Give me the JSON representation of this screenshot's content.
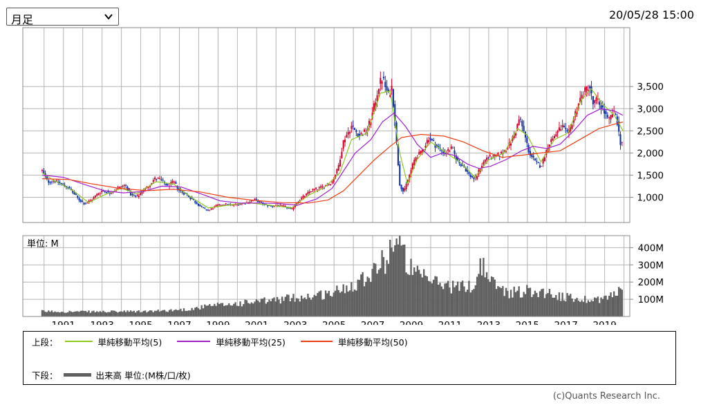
{
  "period_select": {
    "value": "月足"
  },
  "timestamp": "20/05/28 15:00",
  "colors": {
    "up": "#d8002a",
    "down": "#0d2fa8",
    "ma5": "#8cc81e",
    "ma25": "#a01ed2",
    "ma50": "#ee3c10",
    "volume": "#606060"
  },
  "chart_data": [
    {
      "type": "candlestick",
      "interval": "monthly",
      "y_ticks": [
        "1,000",
        "1,500",
        "2,000",
        "2,500",
        "3,000",
        "3,500"
      ],
      "x_ticks": [
        "1991",
        "1993",
        "1995",
        "1997",
        "1999",
        "2001",
        "2003",
        "2005",
        "2007",
        "2009",
        "2011",
        "2013",
        "2015",
        "2017",
        "2019"
      ],
      "ylim": [
        430,
        4830
      ],
      "xlim": [
        1989.4,
        2020.8
      ],
      "grid": true,
      "price_path": [
        [
          1990.4,
          1600
        ],
        [
          1990.7,
          1350
        ],
        [
          1991.0,
          1380
        ],
        [
          1991.4,
          1300
        ],
        [
          1991.8,
          1200
        ],
        [
          1992.3,
          950
        ],
        [
          1992.6,
          850
        ],
        [
          1992.9,
          920
        ],
        [
          1993.2,
          1050
        ],
        [
          1993.5,
          1150
        ],
        [
          1993.9,
          1100
        ],
        [
          1994.3,
          1200
        ],
        [
          1994.7,
          1280
        ],
        [
          1995.0,
          1050
        ],
        [
          1995.3,
          1000
        ],
        [
          1995.6,
          1150
        ],
        [
          1995.9,
          1250
        ],
        [
          1996.2,
          1420
        ],
        [
          1996.5,
          1400
        ],
        [
          1996.9,
          1250
        ],
        [
          1997.2,
          1350
        ],
        [
          1997.5,
          1150
        ],
        [
          1997.9,
          1050
        ],
        [
          1998.3,
          900
        ],
        [
          1998.7,
          750
        ],
        [
          1999.0,
          700
        ],
        [
          1999.4,
          800
        ],
        [
          1999.8,
          850
        ],
        [
          2000.2,
          820
        ],
        [
          2000.6,
          850
        ],
        [
          2001.0,
          880
        ],
        [
          2001.4,
          950
        ],
        [
          2001.8,
          850
        ],
        [
          2002.2,
          800
        ],
        [
          2002.6,
          820
        ],
        [
          2003.0,
          780
        ],
        [
          2003.3,
          720
        ],
        [
          2003.6,
          900
        ],
        [
          2003.9,
          1000
        ],
        [
          2004.3,
          1150
        ],
        [
          2004.7,
          1200
        ],
        [
          2005.0,
          1250
        ],
        [
          2005.4,
          1350
        ],
        [
          2005.7,
          1650
        ],
        [
          2006.0,
          2300
        ],
        [
          2006.4,
          2600
        ],
        [
          2006.8,
          2400
        ],
        [
          2007.2,
          2500
        ],
        [
          2007.5,
          2900
        ],
        [
          2007.8,
          3500
        ],
        [
          2008.0,
          3700
        ],
        [
          2008.3,
          3300
        ],
        [
          2008.5,
          3500
        ],
        [
          2008.7,
          2400
        ],
        [
          2008.9,
          1300
        ],
        [
          2009.1,
          1100
        ],
        [
          2009.4,
          1500
        ],
        [
          2009.7,
          1900
        ],
        [
          2010.0,
          2000
        ],
        [
          2010.4,
          2350
        ],
        [
          2010.8,
          2150
        ],
        [
          2011.2,
          2000
        ],
        [
          2011.6,
          2100
        ],
        [
          2011.9,
          1800
        ],
        [
          2012.2,
          1700
        ],
        [
          2012.5,
          1500
        ],
        [
          2012.8,
          1400
        ],
        [
          2013.1,
          1700
        ],
        [
          2013.4,
          1900
        ],
        [
          2013.8,
          1900
        ],
        [
          2014.2,
          2000
        ],
        [
          2014.6,
          2200
        ],
        [
          2014.9,
          2500
        ],
        [
          2015.1,
          2800
        ],
        [
          2015.3,
          2500
        ],
        [
          2015.6,
          2000
        ],
        [
          2015.9,
          1800
        ],
        [
          2016.2,
          1700
        ],
        [
          2016.6,
          2200
        ],
        [
          2017.0,
          2450
        ],
        [
          2017.3,
          2600
        ],
        [
          2017.6,
          2400
        ],
        [
          2017.9,
          2800
        ],
        [
          2018.2,
          3200
        ],
        [
          2018.5,
          3400
        ],
        [
          2018.7,
          3550
        ],
        [
          2018.9,
          3100
        ],
        [
          2019.1,
          3200
        ],
        [
          2019.4,
          3000
        ],
        [
          2019.7,
          2700
        ],
        [
          2019.9,
          2900
        ],
        [
          2020.1,
          2850
        ],
        [
          2020.25,
          2400
        ],
        [
          2020.35,
          2150
        ],
        [
          2020.45,
          2350
        ]
      ],
      "moving_averages": [
        {
          "name": "単純移動平均(5)",
          "color_key": "ma5",
          "path": [
            [
              1990.4,
              1550
            ],
            [
              1991.0,
              1380
            ],
            [
              1992.0,
              1150
            ],
            [
              1992.8,
              880
            ],
            [
              1993.6,
              1050
            ],
            [
              1994.5,
              1200
            ],
            [
              1995.3,
              1080
            ],
            [
              1996.3,
              1350
            ],
            [
              1997.2,
              1300
            ],
            [
              1998.1,
              1000
            ],
            [
              1999.0,
              760
            ],
            [
              2000.0,
              820
            ],
            [
              2001.0,
              880
            ],
            [
              2002.2,
              820
            ],
            [
              2003.3,
              760
            ],
            [
              2004.2,
              1050
            ],
            [
              2005.0,
              1220
            ],
            [
              2005.8,
              1550
            ],
            [
              2006.4,
              2300
            ],
            [
              2007.2,
              2450
            ],
            [
              2007.9,
              3350
            ],
            [
              2008.4,
              3400
            ],
            [
              2008.9,
              2000
            ],
            [
              2009.3,
              1300
            ],
            [
              2009.8,
              1850
            ],
            [
              2010.5,
              2250
            ],
            [
              2011.3,
              2000
            ],
            [
              2012.0,
              1800
            ],
            [
              2012.8,
              1450
            ],
            [
              2013.5,
              1850
            ],
            [
              2014.3,
              2000
            ],
            [
              2015.0,
              2550
            ],
            [
              2015.5,
              2400
            ],
            [
              2016.2,
              1800
            ],
            [
              2016.9,
              2300
            ],
            [
              2017.6,
              2450
            ],
            [
              2018.3,
              3200
            ],
            [
              2018.8,
              3450
            ],
            [
              2019.4,
              3100
            ],
            [
              2020.0,
              2850
            ],
            [
              2020.45,
              2500
            ]
          ]
        },
        {
          "name": "単純移動平均(25)",
          "color_key": "ma25",
          "path": [
            [
              1990.4,
              1500
            ],
            [
              1991.5,
              1450
            ],
            [
              1992.5,
              1300
            ],
            [
              1993.6,
              1150
            ],
            [
              1994.6,
              1100
            ],
            [
              1995.6,
              1130
            ],
            [
              1996.6,
              1250
            ],
            [
              1997.6,
              1230
            ],
            [
              1998.6,
              1080
            ],
            [
              1999.6,
              920
            ],
            [
              2000.6,
              870
            ],
            [
              2001.6,
              870
            ],
            [
              2002.6,
              860
            ],
            [
              2003.6,
              820
            ],
            [
              2004.6,
              960
            ],
            [
              2005.4,
              1200
            ],
            [
              2006.0,
              1600
            ],
            [
              2006.6,
              2000
            ],
            [
              2007.4,
              2300
            ],
            [
              2008.0,
              2700
            ],
            [
              2008.6,
              2900
            ],
            [
              2009.2,
              2600
            ],
            [
              2009.8,
              2200
            ],
            [
              2010.5,
              1900
            ],
            [
              2011.1,
              2000
            ],
            [
              2011.7,
              1950
            ],
            [
              2012.4,
              1750
            ],
            [
              2013.0,
              1650
            ],
            [
              2013.6,
              1700
            ],
            [
              2014.4,
              1850
            ],
            [
              2015.2,
              2050
            ],
            [
              2015.8,
              2150
            ],
            [
              2016.5,
              2100
            ],
            [
              2017.2,
              2200
            ],
            [
              2017.9,
              2500
            ],
            [
              2018.6,
              2850
            ],
            [
              2019.3,
              3000
            ],
            [
              2020.0,
              2950
            ],
            [
              2020.45,
              2850
            ]
          ]
        },
        {
          "name": "単純移動平均(50)",
          "color_key": "ma50",
          "path": [
            [
              1990.4,
              1420
            ],
            [
              1991.8,
              1400
            ],
            [
              1993.0,
              1300
            ],
            [
              1994.4,
              1200
            ],
            [
              1995.8,
              1150
            ],
            [
              1997.2,
              1180
            ],
            [
              1998.6,
              1120
            ],
            [
              2000.0,
              1000
            ],
            [
              2001.4,
              930
            ],
            [
              2002.8,
              880
            ],
            [
              2004.2,
              870
            ],
            [
              2005.2,
              940
            ],
            [
              2006.0,
              1150
            ],
            [
              2006.8,
              1500
            ],
            [
              2007.6,
              1850
            ],
            [
              2008.4,
              2150
            ],
            [
              2009.0,
              2350
            ],
            [
              2010.0,
              2420
            ],
            [
              2011.2,
              2380
            ],
            [
              2012.2,
              2250
            ],
            [
              2013.2,
              2050
            ],
            [
              2014.2,
              1900
            ],
            [
              2015.2,
              1950
            ],
            [
              2016.2,
              2000
            ],
            [
              2017.2,
              2050
            ],
            [
              2018.2,
              2300
            ],
            [
              2019.2,
              2550
            ],
            [
              2020.0,
              2650
            ],
            [
              2020.45,
              2700
            ]
          ]
        }
      ]
    },
    {
      "type": "bar",
      "title": "単位: M",
      "y_ticks": [
        "100M",
        "200M",
        "300M",
        "400M"
      ],
      "ylim": [
        0,
        470
      ],
      "xlim": [
        1989.4,
        2020.8
      ],
      "grid": true,
      "volume_path": [
        [
          1990.4,
          30
        ],
        [
          1992.0,
          28
        ],
        [
          1994.0,
          28
        ],
        [
          1996.0,
          30
        ],
        [
          1998.0,
          42
        ],
        [
          1999.0,
          60
        ],
        [
          2000.5,
          75
        ],
        [
          2002.0,
          90
        ],
        [
          2003.5,
          110
        ],
        [
          2004.5,
          120
        ],
        [
          2005.5,
          140
        ],
        [
          2006.5,
          190
        ],
        [
          2007.2,
          240
        ],
        [
          2007.8,
          300
        ],
        [
          2008.2,
          330
        ],
        [
          2008.6,
          460
        ],
        [
          2009.0,
          380
        ],
        [
          2009.6,
          250
        ],
        [
          2010.2,
          220
        ],
        [
          2011.0,
          190
        ],
        [
          2012.0,
          170
        ],
        [
          2012.8,
          180
        ],
        [
          2013.1,
          320
        ],
        [
          2013.6,
          200
        ],
        [
          2014.5,
          140
        ],
        [
          2015.5,
          150
        ],
        [
          2016.5,
          140
        ],
        [
          2017.5,
          110
        ],
        [
          2018.5,
          100
        ],
        [
          2019.5,
          105
        ],
        [
          2020.2,
          140
        ],
        [
          2020.35,
          190
        ],
        [
          2020.45,
          100
        ]
      ]
    }
  ],
  "legend": {
    "upper_label": "上段：",
    "lower_label": "下段：",
    "ma5": "単純移動平均(5)",
    "ma25": "単純移動平均(25)",
    "ma50": "単純移動平均(50)",
    "volume": "出来高 単位:(M株/口/枚)"
  },
  "copyright": "(c)Quants Research Inc."
}
